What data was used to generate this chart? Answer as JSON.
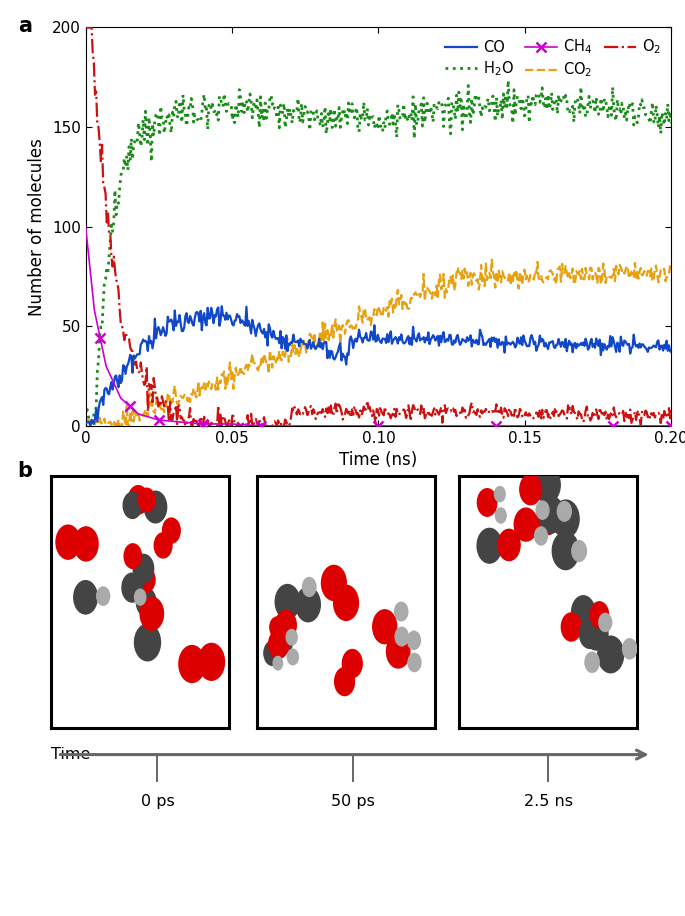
{
  "xlabel": "Time (ns)",
  "ylabel": "Number of molecules",
  "xlim": [
    0,
    0.2
  ],
  "ylim": [
    0,
    200
  ],
  "yticks": [
    0,
    50,
    100,
    150,
    200
  ],
  "xticks": [
    0,
    0.05,
    0.1,
    0.15,
    0.2
  ],
  "xtick_labels": [
    "0",
    "0.05",
    "0.10",
    "0.15",
    "0.20"
  ],
  "co_color": "#1148c8",
  "h2o_color": "#1a8c1a",
  "ch4_color": "#cc00cc",
  "co2_color": "#e6a010",
  "o2_color": "#cc1111",
  "timeline_labels": [
    "0 ps",
    "50 ps",
    "2.5 ns"
  ],
  "time_label": "Time"
}
